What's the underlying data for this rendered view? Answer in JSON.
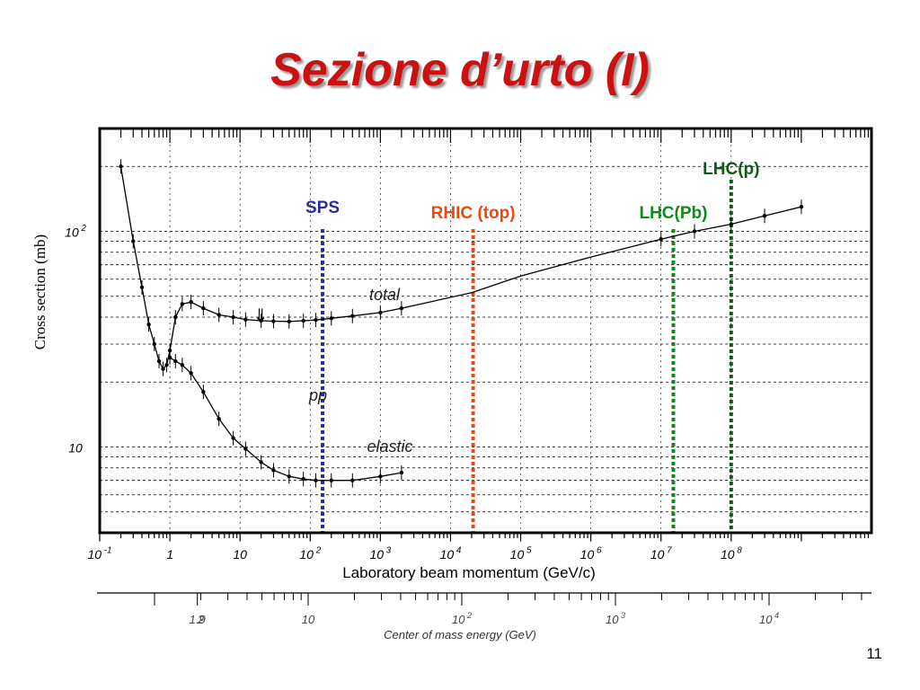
{
  "slide": {
    "title": "Sezione d’urto (I)",
    "page_number": "11"
  },
  "chart_data": {
    "type": "scatter",
    "ylabel": "Cross section (mb)",
    "xlabel": "Laboratory beam momentum (GeV/c)",
    "xscale": "log",
    "yscale": "log",
    "xlim": [
      0.1,
      10000000000
    ],
    "ylim": [
      4,
      300
    ],
    "grid": true,
    "x_ticks": [
      {
        "value": 0.1,
        "base": "10",
        "exp": "-1"
      },
      {
        "value": 1,
        "base": "1",
        "exp": ""
      },
      {
        "value": 10,
        "base": "10",
        "exp": ""
      },
      {
        "value": 100,
        "base": "10",
        "exp": "2"
      },
      {
        "value": 1000,
        "base": "10",
        "exp": "3"
      },
      {
        "value": 10000,
        "base": "10",
        "exp": "4"
      },
      {
        "value": 100000,
        "base": "10",
        "exp": "5"
      },
      {
        "value": 1000000,
        "base": "10",
        "exp": "6"
      },
      {
        "value": 10000000,
        "base": "10",
        "exp": "7"
      },
      {
        "value": 100000000,
        "base": "10",
        "exp": "8"
      }
    ],
    "y_ticks": [
      {
        "value": 100,
        "base": "10",
        "exp": "2"
      },
      {
        "value": 10,
        "base": "10",
        "exp": ""
      }
    ],
    "curve_labels": [
      "total",
      "pp",
      "elastic"
    ],
    "arrow_annotation": "⇓",
    "series": [
      {
        "name": "total",
        "x": [
          0.2,
          0.3,
          0.4,
          0.5,
          0.6,
          0.7,
          0.8,
          0.9,
          1.0,
          1.2,
          1.5,
          2,
          3,
          5,
          8,
          12,
          20,
          30,
          50,
          80,
          120,
          200,
          400,
          1000,
          2000,
          5000,
          20000,
          100000,
          1000000,
          10000000,
          30000000,
          100000000,
          300000000,
          1000000000
        ],
        "y": [
          200,
          90,
          55,
          37,
          30,
          25,
          23,
          24,
          28,
          40,
          46,
          47,
          44,
          41,
          40,
          39,
          38.5,
          38.3,
          38.2,
          38.5,
          38.8,
          39.5,
          40.5,
          42,
          44,
          47,
          52,
          62,
          76,
          92,
          100,
          108,
          118,
          130
        ]
      },
      {
        "name": "elastic",
        "x": [
          1.0,
          1.2,
          1.5,
          2,
          3,
          5,
          8,
          12,
          20,
          30,
          50,
          80,
          120,
          200,
          400,
          1000,
          2000
        ],
        "y": [
          26,
          25,
          24,
          22,
          18,
          13.5,
          11,
          9.8,
          8.5,
          7.8,
          7.3,
          7.1,
          7.0,
          7.0,
          7.0,
          7.3,
          7.6
        ]
      }
    ],
    "markers": [
      {
        "label": "SPS",
        "x": 150,
        "color": "#2b2d9c"
      },
      {
        "label": "RHIC (top)",
        "x": 21000,
        "color": "#e84a13"
      },
      {
        "label": "LHC(Pb)",
        "x": 15000000,
        "color": "#128a18"
      },
      {
        "label": "LHC(p)",
        "x": 100000000,
        "color": "#0f5a14"
      }
    ]
  },
  "cm_axis": {
    "label": "Center of mass energy (GeV)",
    "ticks": [
      {
        "value": 1.9,
        "base": "1.9",
        "exp": ""
      },
      {
        "value": 2,
        "base": "2",
        "exp": ""
      },
      {
        "value": 10,
        "base": "10",
        "exp": ""
      },
      {
        "value": 100,
        "base": "10",
        "exp": "2"
      },
      {
        "value": 1000,
        "base": "10",
        "exp": "3"
      },
      {
        "value": 10000,
        "base": "10",
        "exp": "4"
      }
    ]
  }
}
